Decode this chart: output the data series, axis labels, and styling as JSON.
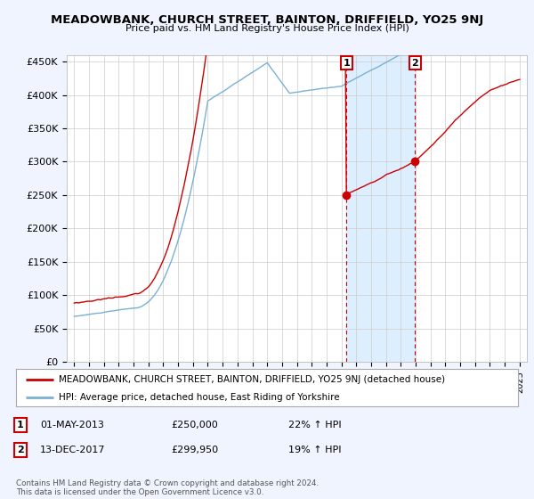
{
  "title": "MEADOWBANK, CHURCH STREET, BAINTON, DRIFFIELD, YO25 9NJ",
  "subtitle": "Price paid vs. HM Land Registry's House Price Index (HPI)",
  "legend_line1": "MEADOWBANK, CHURCH STREET, BAINTON, DRIFFIELD, YO25 9NJ (detached house)",
  "legend_line2": "HPI: Average price, detached house, East Riding of Yorkshire",
  "red_color": "#cc0000",
  "blue_color": "#7ab0d4",
  "shade_color": "#ddeeff",
  "background_color": "#f0f4ff",
  "plot_bg": "#ffffff",
  "ylim": [
    0,
    460000
  ],
  "yticks": [
    0,
    50000,
    100000,
    150000,
    200000,
    250000,
    300000,
    350000,
    400000,
    450000
  ],
  "ytick_labels": [
    "£0",
    "£50K",
    "£100K",
    "£150K",
    "£200K",
    "£250K",
    "£300K",
    "£350K",
    "£400K",
    "£450K"
  ],
  "sale1_date": 2013.33,
  "sale1_price": 250000,
  "sale1_label": "1",
  "sale2_date": 2017.95,
  "sale2_price": 299950,
  "sale2_label": "2",
  "table_row1": [
    "1",
    "01-MAY-2013",
    "£250,000",
    "22% ↑ HPI"
  ],
  "table_row2": [
    "2",
    "13-DEC-2017",
    "£299,950",
    "19% ↑ HPI"
  ],
  "footer": "Contains HM Land Registry data © Crown copyright and database right 2024.\nThis data is licensed under the Open Government Licence v3.0.",
  "xlim_start": 1994.5,
  "xlim_end": 2025.5
}
